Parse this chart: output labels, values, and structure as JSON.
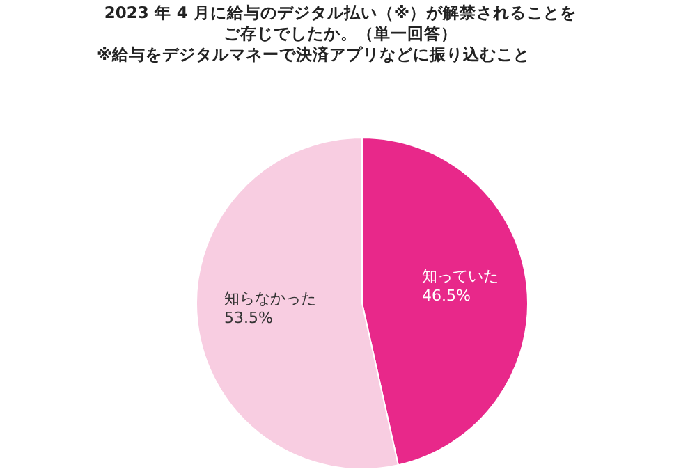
{
  "chart_data": {
    "type": "pie",
    "title": "2023 年 4 月に給与のデジタル払い（※）が解禁されることをご存じでしたか。（単一回答）",
    "annotations": [
      "※給与をデジタルマネーで決済アプリなどに振り込むこと"
    ],
    "categories": [
      "知っていた",
      "知らなかった"
    ],
    "values": [
      46.5,
      53.5
    ],
    "colors": [
      "#e8288a",
      "#f8cde1"
    ],
    "value_labels": [
      "46.5%",
      "53.5%"
    ]
  }
}
